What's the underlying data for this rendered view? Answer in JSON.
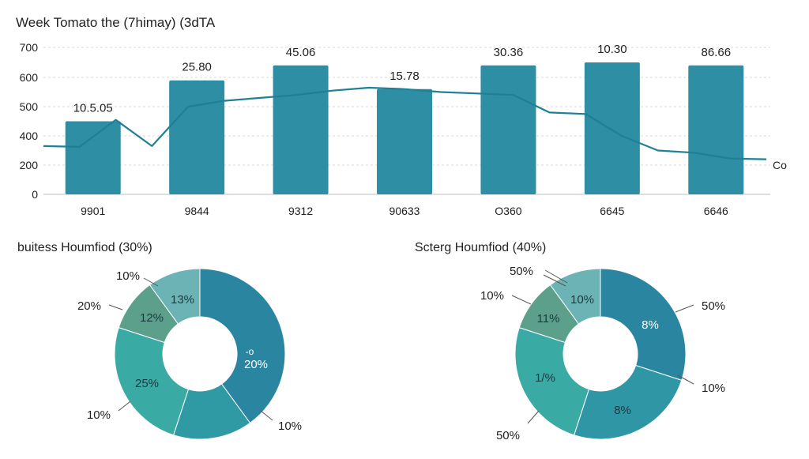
{
  "colors": {
    "bar": "#2e8ea3",
    "line": "#1f7f95",
    "grid": "#d9d9d9",
    "text": "#222222",
    "leader": "#555555"
  },
  "chart_data": [
    {
      "type": "bar",
      "title": "Week Tomato the (7himay) (3dTA",
      "categories": [
        "9901",
        "9844",
        "9312",
        "90633",
        "O360",
        "6645",
        "6646"
      ],
      "values": [
        450,
        590,
        640,
        560,
        640,
        650,
        640
      ],
      "bar_labels": [
        "10.5.05",
        "25.80",
        "45.06",
        "15.78",
        "30.36",
        "10.30",
        "86.66"
      ],
      "yticks": [
        "700",
        "600",
        "500",
        "400",
        "200",
        "0"
      ],
      "ylim": [
        0,
        700
      ],
      "grid": true,
      "line_series": {
        "y": [
          330,
          325,
          455,
          330,
          500,
          520,
          530,
          540,
          555,
          565,
          560,
          550,
          545,
          540,
          480,
          475,
          400,
          300,
          285,
          245,
          240
        ],
        "end_label": "Co"
      }
    },
    {
      "type": "pie",
      "style": "donut",
      "title": "buitess Houmfiod (30%)",
      "slices": [
        {
          "value": 40,
          "color": "#2a86a0",
          "inner_label": "20%",
          "outer_label": "10%"
        },
        {
          "value": 15,
          "color": "#2f9aa3",
          "inner_label": "",
          "outer_label": ""
        },
        {
          "value": 25,
          "color": "#3aaaa5",
          "inner_label": "25%",
          "outer_label": "10%"
        },
        {
          "value": 10,
          "color": "#5ca08c",
          "inner_label": "12%",
          "outer_label": "20%"
        },
        {
          "value": 10,
          "color": "#6cb3b5",
          "inner_label": "13%",
          "outer_label": "10%"
        }
      ],
      "center_mark": "-o"
    },
    {
      "type": "pie",
      "style": "donut",
      "title": "Scterg Houmfiod (40%)",
      "slices": [
        {
          "value": 30,
          "color": "#2a86a0",
          "inner_label": "8%",
          "outer_label": "50%"
        },
        {
          "value": 25,
          "color": "#2f96a6",
          "inner_label": "8%",
          "outer_label": "10%"
        },
        {
          "value": 25,
          "color": "#3aaaa5",
          "inner_label": "1/%",
          "outer_label": "50%"
        },
        {
          "value": 10,
          "color": "#5ca08c",
          "inner_label": "11%",
          "outer_label": "10%"
        },
        {
          "value": 10,
          "color": "#6cb3b5",
          "inner_label": "10%",
          "outer_label": "50%"
        }
      ]
    }
  ]
}
